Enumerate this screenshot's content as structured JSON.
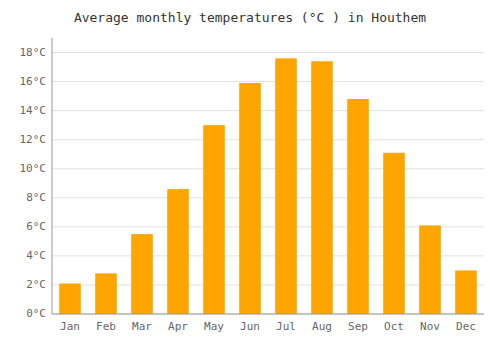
{
  "chart_data": {
    "type": "bar",
    "title": "Average monthly temperatures (°C ) in Houthem",
    "categories": [
      "Jan",
      "Feb",
      "Mar",
      "Apr",
      "May",
      "Jun",
      "Jul",
      "Aug",
      "Sep",
      "Oct",
      "Nov",
      "Dec"
    ],
    "values": [
      2.1,
      2.8,
      5.5,
      8.6,
      13.0,
      15.9,
      17.6,
      17.4,
      14.8,
      11.1,
      6.1,
      3.0
    ],
    "color": "#FFA500",
    "ylim": [
      0,
      19
    ],
    "yticks": [
      {
        "value": 0,
        "label": "0°C"
      },
      {
        "value": 2,
        "label": "2°C"
      },
      {
        "value": 4,
        "label": "4°C"
      },
      {
        "value": 6,
        "label": "6°C"
      },
      {
        "value": 8,
        "label": "8°C"
      },
      {
        "value": 10,
        "label": "10°C"
      },
      {
        "value": 12,
        "label": "12°C"
      },
      {
        "value": 14,
        "label": "14°C"
      },
      {
        "value": 16,
        "label": "16°C"
      },
      {
        "value": 18,
        "label": "18°C"
      }
    ],
    "grid": true
  }
}
